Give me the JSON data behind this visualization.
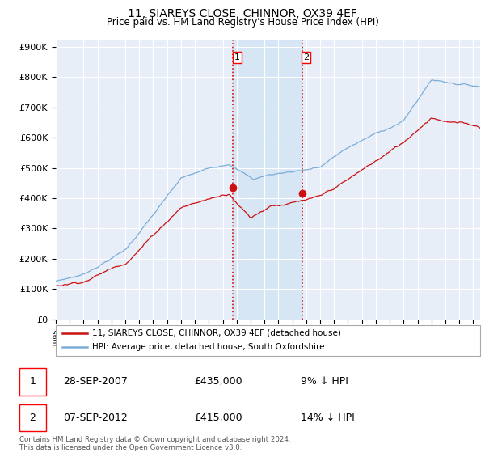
{
  "title": "11, SIAREYS CLOSE, CHINNOR, OX39 4EF",
  "subtitle": "Price paid vs. HM Land Registry's House Price Index (HPI)",
  "ylabel_ticks": [
    "£0",
    "£100K",
    "£200K",
    "£300K",
    "£400K",
    "£500K",
    "£600K",
    "£700K",
    "£800K",
    "£900K"
  ],
  "ytick_values": [
    0,
    100000,
    200000,
    300000,
    400000,
    500000,
    600000,
    700000,
    800000,
    900000
  ],
  "ylim": [
    0,
    920000
  ],
  "xlim_start": 1995.0,
  "xlim_end": 2025.5,
  "hpi_color": "#7aadda",
  "price_color": "#cc1111",
  "grid_color": "#cccccc",
  "background_color": "#e8eef8",
  "shade_color": "#d5e5f5",
  "transaction1_year": 2007.75,
  "transaction1_price": 435000,
  "transaction2_year": 2012.69,
  "transaction2_price": 415000,
  "legend_line1": "11, SIAREYS CLOSE, CHINNOR, OX39 4EF (detached house)",
  "legend_line2": "HPI: Average price, detached house, South Oxfordshire",
  "footer": "Contains HM Land Registry data © Crown copyright and database right 2024.\nThis data is licensed under the Open Government Licence v3.0.",
  "table_rows": [
    {
      "num": "1",
      "date": "28-SEP-2007",
      "price": "£435,000",
      "hpi": "9% ↓ HPI"
    },
    {
      "num": "2",
      "date": "07-SEP-2012",
      "price": "£415,000",
      "hpi": "14% ↓ HPI"
    }
  ]
}
